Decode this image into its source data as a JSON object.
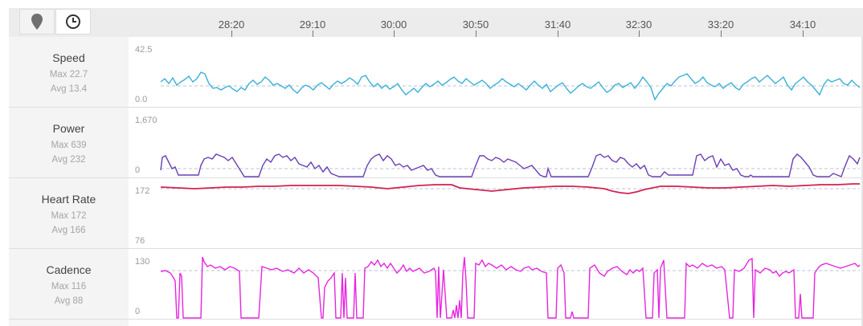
{
  "toolbar": {
    "buttons": [
      {
        "icon": "map-pin-icon"
      },
      {
        "icon": "clock-icon"
      }
    ]
  },
  "time_axis": {
    "ticks": [
      "28:20",
      "29:10",
      "30:00",
      "30:50",
      "31:40",
      "32:30",
      "33:20",
      "34:10"
    ]
  },
  "metrics": [
    {
      "name": "Speed",
      "max_label": "Max 22.7",
      "avg_label": "Avg 13.4",
      "y_top": "42.5",
      "y_bottom": "0.0",
      "max": 22.7,
      "avg": 13.4,
      "range": [
        0,
        42.5
      ],
      "color": "#3ab0d8"
    },
    {
      "name": "Power",
      "max_label": "Max 639",
      "avg_label": "Avg 232",
      "y_top": "1,670",
      "y_bottom": "0",
      "max": 639,
      "avg": 232,
      "range": [
        0,
        1670
      ],
      "color": "#6a3fb5"
    },
    {
      "name": "Heart Rate",
      "max_label": "Max 172",
      "avg_label": "Avg 166",
      "y_top": "172",
      "y_bottom": "76",
      "max": 172,
      "avg": 166,
      "range": [
        76,
        172
      ],
      "color": "#d3224f"
    },
    {
      "name": "Cadence",
      "max_label": "Max 116",
      "avg_label": "Avg 88",
      "y_top": "130",
      "y_bottom": "0",
      "max": 116,
      "avg": 88,
      "range": [
        0,
        130
      ],
      "color": "#e626e0"
    }
  ],
  "colors": {
    "avg_line": "#b8c6d6"
  }
}
